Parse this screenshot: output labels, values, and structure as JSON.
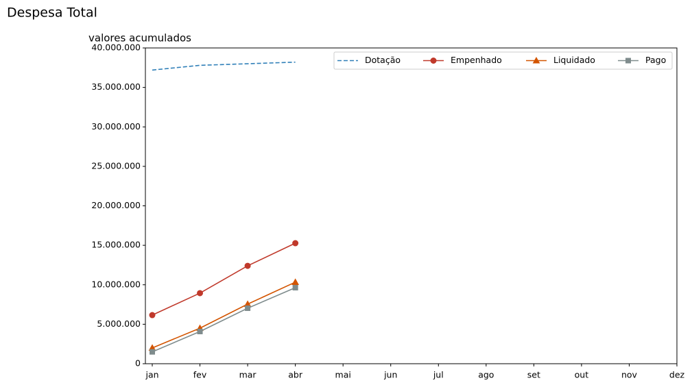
{
  "chart_data": {
    "type": "line",
    "title": "Despesa Total",
    "subtitle": "valores acumulados",
    "categories": [
      "jan",
      "fev",
      "mar",
      "abr",
      "mai",
      "jun",
      "jul",
      "ago",
      "set",
      "out",
      "nov",
      "dez"
    ],
    "series": [
      {
        "name": "Dotação",
        "color": "#2f7fb8",
        "linestyle": "dashed",
        "marker": "none",
        "values": [
          37200000,
          37800000,
          38000000,
          38200000,
          null,
          null,
          null,
          null,
          null,
          null,
          null,
          null
        ]
      },
      {
        "name": "Empenhado",
        "color": "#c0392b",
        "linestyle": "solid",
        "marker": "circle",
        "values": [
          6160000,
          8940000,
          12400000,
          15270000,
          null,
          null,
          null,
          null,
          null,
          null,
          null,
          null
        ]
      },
      {
        "name": "Liquidado",
        "color": "#d35400",
        "linestyle": "solid",
        "marker": "triangle",
        "values": [
          2000000,
          4500000,
          7550000,
          10330000,
          null,
          null,
          null,
          null,
          null,
          null,
          null,
          null
        ]
      },
      {
        "name": "Pago",
        "color": "#7f8c8d",
        "linestyle": "solid",
        "marker": "square",
        "values": [
          1500000,
          4080000,
          7030000,
          9630000,
          null,
          null,
          null,
          null,
          null,
          null,
          null,
          null
        ]
      }
    ],
    "ylim": [
      0,
      40000000
    ],
    "yticks": [
      0,
      {
        "value": 5000000,
        "label": "5.000.000"
      },
      {
        "value": 10000000,
        "label": "10.000.000"
      },
      {
        "value": 15000000,
        "label": "15.000.000"
      },
      {
        "value": 20000000,
        "label": "20.000.000"
      },
      {
        "value": 25000000,
        "label": "25.000.000"
      },
      {
        "value": 30000000,
        "label": "30.000.000"
      },
      {
        "value": 35000000,
        "label": "35.000.000"
      },
      {
        "value": 40000000,
        "label": "40.000.000"
      }
    ],
    "legend": "upper right",
    "legend_columns": 4,
    "grid": false
  }
}
